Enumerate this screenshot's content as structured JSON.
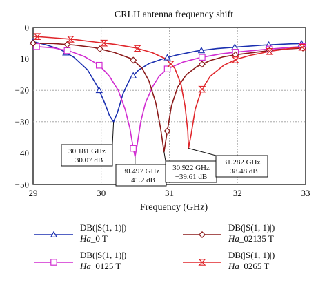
{
  "chart_data": {
    "type": "line",
    "title": "CRLH antenna frequency shift",
    "xlabel": "Frequency (GHz)",
    "ylabel": "",
    "xlim": [
      29,
      33
    ],
    "ylim": [
      -50,
      0
    ],
    "xticks": [
      29,
      30,
      31,
      32,
      33
    ],
    "yticks": [
      0,
      -10,
      -20,
      -30,
      -40,
      -50
    ],
    "grid": true,
    "legend_position": "bottom",
    "series": [
      {
        "name": "DB(|S(1, 1)|)",
        "sub": "Ha_0 T",
        "sub_prefix": "Ha",
        "sub_suffix": "_0 T",
        "color": "#1a2fb0",
        "marker": "triangle-up",
        "points": [
          [
            29.0,
            -4.5
          ],
          [
            29.2,
            -5.6
          ],
          [
            29.4,
            -7.0
          ],
          [
            29.6,
            -9.5
          ],
          [
            29.8,
            -13.5
          ],
          [
            29.95,
            -19.0
          ],
          [
            30.05,
            -24.0
          ],
          [
            30.12,
            -28.0
          ],
          [
            30.181,
            -30.07
          ],
          [
            30.24,
            -27.0
          ],
          [
            30.32,
            -21.0
          ],
          [
            30.42,
            -16.5
          ],
          [
            30.55,
            -13.5
          ],
          [
            30.7,
            -11.5
          ],
          [
            30.9,
            -10.0
          ],
          [
            31.1,
            -8.8
          ],
          [
            31.4,
            -7.5
          ],
          [
            31.7,
            -6.7
          ],
          [
            32.0,
            -6.2
          ],
          [
            32.4,
            -5.6
          ],
          [
            32.8,
            -5.2
          ],
          [
            33.0,
            -5.1
          ]
        ],
        "marker_x": [
          29.0,
          29.48,
          29.97,
          30.47,
          30.97,
          31.47,
          31.96,
          32.46,
          32.94
        ]
      },
      {
        "name": "DB(|S(1, 1)|)",
        "sub": "Ha_0125 T",
        "sub_prefix": "Ha",
        "sub_suffix": "_0125 T",
        "color": "#d12cd1",
        "marker": "square",
        "points": [
          [
            29.0,
            -6.0
          ],
          [
            29.3,
            -6.5
          ],
          [
            29.55,
            -7.6
          ],
          [
            29.75,
            -9.2
          ],
          [
            29.97,
            -12.0
          ],
          [
            30.12,
            -15.5
          ],
          [
            30.25,
            -20.0
          ],
          [
            30.35,
            -26.0
          ],
          [
            30.42,
            -32.0
          ],
          [
            30.47,
            -38.5
          ],
          [
            30.497,
            -41.2
          ],
          [
            30.53,
            -37.0
          ],
          [
            30.58,
            -30.0
          ],
          [
            30.65,
            -24.0
          ],
          [
            30.75,
            -19.0
          ],
          [
            30.85,
            -15.5
          ],
          [
            30.97,
            -13.2
          ],
          [
            31.2,
            -11.0
          ],
          [
            31.45,
            -9.6
          ],
          [
            31.75,
            -8.4
          ],
          [
            32.0,
            -7.8
          ],
          [
            32.4,
            -7.0
          ],
          [
            32.8,
            -6.3
          ],
          [
            33.0,
            -6.0
          ]
        ],
        "marker_x": [
          29.05,
          29.5,
          29.97,
          30.47,
          30.97,
          31.48,
          31.97,
          32.47,
          32.95
        ]
      },
      {
        "name": "DB(|S(1, 1)|)",
        "sub": "Ha_02135 T",
        "sub_prefix": "Ha",
        "sub_suffix": "_02135 T",
        "color": "#8b1a1a",
        "marker": "diamond",
        "points": [
          [
            29.0,
            -5.0
          ],
          [
            29.3,
            -5.1
          ],
          [
            29.6,
            -5.6
          ],
          [
            29.9,
            -6.4
          ],
          [
            30.2,
            -8.0
          ],
          [
            30.45,
            -10.0
          ],
          [
            30.6,
            -13.0
          ],
          [
            30.7,
            -17.0
          ],
          [
            30.8,
            -24.0
          ],
          [
            30.87,
            -32.0
          ],
          [
            30.922,
            -39.61
          ],
          [
            30.97,
            -33.0
          ],
          [
            31.03,
            -25.0
          ],
          [
            31.12,
            -19.0
          ],
          [
            31.25,
            -15.0
          ],
          [
            31.4,
            -12.5
          ],
          [
            31.6,
            -10.5
          ],
          [
            31.8,
            -9.3
          ],
          [
            32.0,
            -8.6
          ],
          [
            32.3,
            -7.8
          ],
          [
            32.6,
            -7.0
          ],
          [
            33.0,
            -6.5
          ]
        ],
        "marker_x": [
          29.0,
          29.5,
          29.98,
          30.47,
          30.97,
          31.48,
          31.97,
          32.47,
          32.96
        ]
      },
      {
        "name": "DB(|S(1, 1)|)",
        "sub": "Ha_0265 T",
        "sub_prefix": "Ha",
        "sub_suffix": "_0265 T",
        "color": "#e0262b",
        "marker": "hourglass",
        "points": [
          [
            29.0,
            -2.8
          ],
          [
            29.3,
            -3.3
          ],
          [
            29.6,
            -3.8
          ],
          [
            29.9,
            -4.6
          ],
          [
            30.2,
            -5.4
          ],
          [
            30.5,
            -6.5
          ],
          [
            30.75,
            -8.0
          ],
          [
            30.95,
            -10.0
          ],
          [
            31.08,
            -13.0
          ],
          [
            31.17,
            -18.0
          ],
          [
            31.23,
            -25.0
          ],
          [
            31.27,
            -33.0
          ],
          [
            31.282,
            -38.48
          ],
          [
            31.32,
            -34.0
          ],
          [
            31.38,
            -26.0
          ],
          [
            31.47,
            -20.0
          ],
          [
            31.6,
            -15.5
          ],
          [
            31.8,
            -12.0
          ],
          [
            32.0,
            -10.0
          ],
          [
            32.2,
            -8.8
          ],
          [
            32.5,
            -7.5
          ],
          [
            32.8,
            -6.6
          ],
          [
            33.0,
            -6.2
          ]
        ],
        "marker_x": [
          29.06,
          29.55,
          30.04,
          30.53,
          31.02,
          31.48,
          31.97,
          32.47,
          32.95
        ]
      }
    ],
    "annotations": [
      {
        "x": 30.181,
        "y": -30.07,
        "line1": "30.181 GHz",
        "line2": "−30.07 dB",
        "color": "#1a2fb0"
      },
      {
        "x": 30.497,
        "y": -41.2,
        "line1": "30.497 GHz",
        "line2": "−41.2 dB",
        "color": "#d12cd1"
      },
      {
        "x": 30.922,
        "y": -39.61,
        "line1": "30.922 GHz",
        "line2": "−39.61 dB",
        "color": "#8b1a1a"
      },
      {
        "x": 31.282,
        "y": -38.48,
        "line1": "31.282 GHz",
        "line2": "−38.48 dB",
        "color": "#e0262b"
      }
    ]
  }
}
